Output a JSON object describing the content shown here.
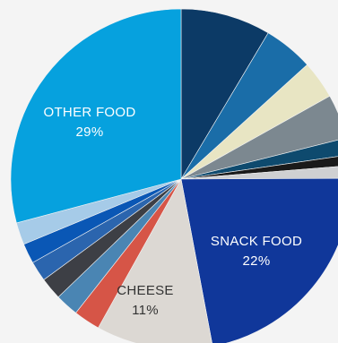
{
  "chart_data": {
    "type": "pie",
    "title": "",
    "start_angle_deg": 0,
    "direction": "clockwise",
    "slices": [
      {
        "name": "",
        "value": 8.5,
        "color": "#0c3a66",
        "label": "",
        "pct": ""
      },
      {
        "name": "",
        "value": 4.7,
        "color": "#1a6da8",
        "label": "",
        "pct": ""
      },
      {
        "name": "",
        "value": 3.6,
        "color": "#e8e5c3",
        "label": "",
        "pct": ""
      },
      {
        "name": "",
        "value": 4.2,
        "color": "#7c8890",
        "label": "",
        "pct": ""
      },
      {
        "name": "",
        "value": 1.6,
        "color": "#0e4a6e",
        "label": "",
        "pct": ""
      },
      {
        "name": "",
        "value": 1.0,
        "color": "#1a1a1a",
        "label": "",
        "pct": ""
      },
      {
        "name": "",
        "value": 1.2,
        "color": "#cfd0d2",
        "label": "",
        "pct": ""
      },
      {
        "name": "SNACK FOOD",
        "value": 22,
        "color": "#10379a",
        "label": "SNACK FOOD",
        "pct": "22%"
      },
      {
        "name": "CHEESE",
        "value": 11,
        "color": "#dcd8d3",
        "label": "CHEESE",
        "pct": "11%"
      },
      {
        "name": "",
        "value": 2.5,
        "color": "#d65547",
        "label": "",
        "pct": ""
      },
      {
        "name": "",
        "value": 2.2,
        "color": "#4a85b3",
        "label": "",
        "pct": ""
      },
      {
        "name": "",
        "value": 2.1,
        "color": "#3d3f45",
        "label": "",
        "pct": ""
      },
      {
        "name": "",
        "value": 1.9,
        "color": "#2b65ae",
        "label": "",
        "pct": ""
      },
      {
        "name": "",
        "value": 1.9,
        "color": "#0a57b5",
        "label": "",
        "pct": ""
      },
      {
        "name": "",
        "value": 2.1,
        "color": "#a6cbe8",
        "label": "",
        "pct": ""
      },
      {
        "name": "OTHER FOOD",
        "value": 29,
        "color": "#06a1de",
        "label": "OTHER FOOD",
        "pct": "29%"
      }
    ],
    "colors": {
      "label_light": "#ffffff",
      "label_dark": "#333333",
      "background": "#f4f4f4"
    }
  }
}
